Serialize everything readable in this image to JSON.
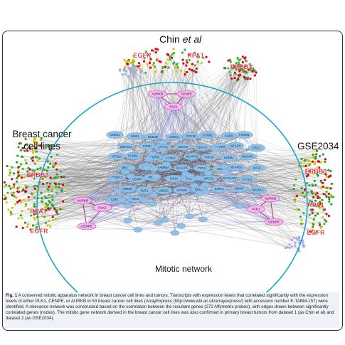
{
  "labels": {
    "chin": "Chin et al",
    "chin_main": "Chin ",
    "chin_ital": "et al",
    "breast_line1": "Breast cancer",
    "breast_line2": "cell lines",
    "gse": "GSE2034",
    "mitotic": "Mitotic network"
  },
  "clusters": {
    "top": [
      "EGFR",
      "RPA1",
      "ERBB3"
    ],
    "left": [
      "ERBB3",
      "RPA1",
      "EGFR"
    ],
    "right": [
      "ERBB3",
      "RPA1",
      "EGFR"
    ]
  },
  "hubs": {
    "top": [
      "AURKB",
      "CENPE",
      "PLK1"
    ],
    "left": [
      "AURKB",
      "PLK1",
      "CENPE"
    ],
    "right": [
      "AURKB",
      "PLK1",
      "CENPE"
    ]
  },
  "genes": [
    "CHEK1",
    "BUB1",
    "BUB1B",
    "AURKA",
    "CDC20",
    "CCNB2",
    "ASPM",
    "FOXM1",
    "DEPDC1",
    "KIF2C",
    "CENPA",
    "CDCA8",
    "CDCA3",
    "NCAPG",
    "NCAPH",
    "PRC1",
    "KIF20A",
    "CCNB1",
    "CEP55",
    "CCNA2",
    "NCAPG2",
    "TOP2A",
    "LMNB1",
    "NUSAP1",
    "MKI67",
    "KIF4A",
    "FAM64A",
    "DLGAP5",
    "TPX2",
    "CDK1",
    "NCAPD2",
    "KIF11",
    "TRIP13",
    "CENPF",
    "MELK",
    "KIF14",
    "STIL",
    "SPC25",
    "RACGAP1",
    "PTTG1",
    "HMMR",
    "NUF2",
    "UBE2C",
    "KIF18B",
    "BIRC5",
    "ESPL1",
    "ZWINT",
    "MAD2L1",
    "CDKN3",
    "ANLN"
  ],
  "caption": {
    "fig": "Fig. 1",
    "text": "A conserved mitotic apparatus network in breast cancer cell lines and tumors. Transcripts with expression levels that correlated significantly with the expression levels of either PLK1, CENPE, or AURKB in 53 breast cancer cell lines (ArrayExpress (http://www.ebi.ac.uk/arrayexpress/) with accession number E-TABM-157) were identified. A relevance network was constructed based on the correlation between the resultant genes (272 Affymetrix probes), with edges drawn between significantly correlated genes (nodes). The mitotic gene network derived in the breast cancer cell lines was also confirmed in primary breast tumors from dataset 1 (as Chin et al) and dataset 2 (as GSE2034)."
  },
  "colors": {
    "cluster_red": "#e0001a",
    "cluster_green": "#2a9d2a",
    "cluster_yellow": "#d9c400",
    "node_blue": "#8fc0e8",
    "hub_pink": "#f5b8ef",
    "circle": "#1aa6c8",
    "edge": "#555555",
    "caption_bg": "#eef1f6"
  }
}
